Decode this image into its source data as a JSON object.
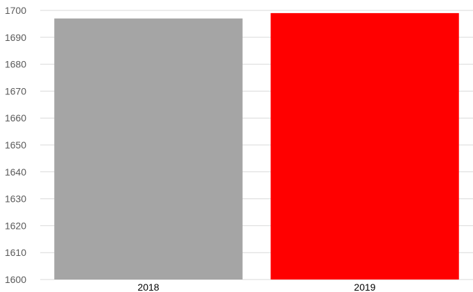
{
  "chart_data": {
    "type": "bar",
    "categories": [
      "2018",
      "2019"
    ],
    "values": [
      1697,
      1699
    ],
    "bar_colors": [
      "#A5A5A5",
      "#FF0000"
    ],
    "title": "",
    "xlabel": "",
    "ylabel": "",
    "ylim": [
      1600,
      1700
    ],
    "yticks": [
      "1600",
      "1610",
      "1620",
      "1630",
      "1640",
      "1650",
      "1660",
      "1670",
      "1680",
      "1690",
      "1700"
    ],
    "grid": true,
    "grid_color": "#D9D9D9",
    "legend": "none"
  }
}
